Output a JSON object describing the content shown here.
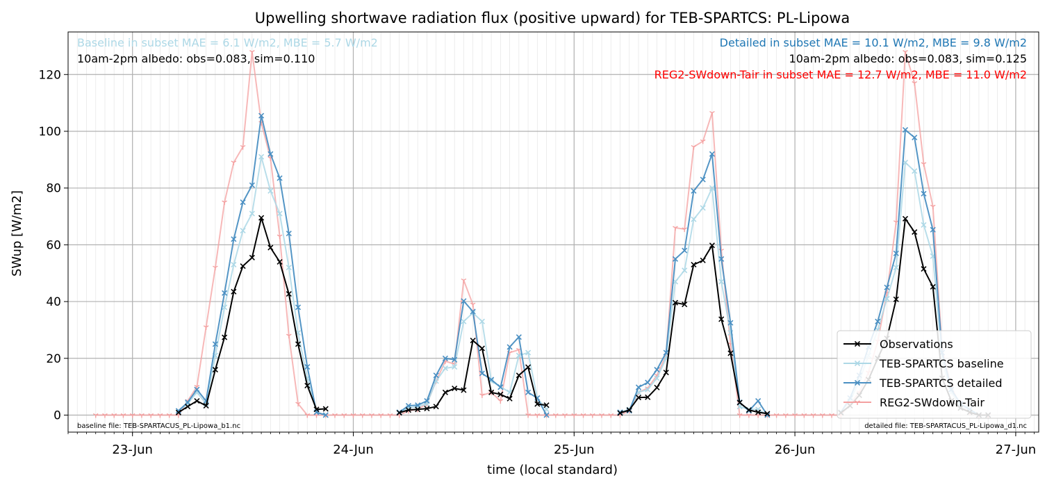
{
  "chart_data": {
    "type": "line",
    "title": "Upwelling shortwave radiation flux (positive upward) for TEB-SPARTCS: PL-Lipowa",
    "xlabel": "time (local standard)",
    "ylabel": "SWup [W/m2]",
    "xlim": [
      "2025-06-22T17:00",
      "2025-06-27T02:30"
    ],
    "ylim": [
      -6,
      135
    ],
    "x_ticks": [
      "23-Jun",
      "24-Jun",
      "25-Jun",
      "26-Jun",
      "27-Jun"
    ],
    "y_ticks": [
      0,
      20,
      40,
      60,
      80,
      100,
      120
    ],
    "grid": true,
    "legend_position": "lower-right",
    "annotations": {
      "baseline_stats": "Baseline in subset MAE = 6.1 W/m2, MBE = 5.7 W/m2",
      "baseline_albedo": "10am-2pm albedo: obs=0.083, sim=0.110",
      "detailed_stats": "Detailed in subset MAE = 10.1 W/m2, MBE = 9.8 W/m2",
      "detailed_albedo": "10am-2pm albedo: obs=0.083, sim=0.125",
      "reg2_stats": "REG2-SWdown-Tair in subset MAE = 12.7 W/m2, MBE = 11.0 W/m2",
      "baseline_file": "baseline file: TEB-SPARTACUS_PL-Lipowa_b1.nc",
      "detailed_file": "detailed file: TEB-SPARTACUS_PL-Lipowa_d1.nc"
    },
    "series": [
      {
        "name": "Observations",
        "color": "#000000",
        "marker": "x",
        "x": [
          "2025-06-23T05:00",
          "2025-06-23T06:00",
          "2025-06-23T07:00",
          "2025-06-23T08:00",
          "2025-06-23T09:00",
          "2025-06-23T10:00",
          "2025-06-23T11:00",
          "2025-06-23T12:00",
          "2025-06-23T13:00",
          "2025-06-23T14:00",
          "2025-06-23T15:00",
          "2025-06-23T16:00",
          "2025-06-23T17:00",
          "2025-06-23T18:00",
          "2025-06-23T19:00",
          "2025-06-23T20:00",
          "2025-06-23T21:00",
          "2025-06-24T05:00",
          "2025-06-24T06:00",
          "2025-06-24T07:00",
          "2025-06-24T08:00",
          "2025-06-24T09:00",
          "2025-06-24T10:00",
          "2025-06-24T11:00",
          "2025-06-24T12:00",
          "2025-06-24T13:00",
          "2025-06-24T14:00",
          "2025-06-24T15:00",
          "2025-06-24T16:00",
          "2025-06-24T17:00",
          "2025-06-24T18:00",
          "2025-06-24T19:00",
          "2025-06-24T20:00",
          "2025-06-24T21:00",
          "2025-06-25T05:00",
          "2025-06-25T06:00",
          "2025-06-25T07:00",
          "2025-06-25T08:00",
          "2025-06-25T09:00",
          "2025-06-25T10:00",
          "2025-06-25T11:00",
          "2025-06-25T12:00",
          "2025-06-25T13:00",
          "2025-06-25T14:00",
          "2025-06-25T15:00",
          "2025-06-25T16:00",
          "2025-06-25T17:00",
          "2025-06-25T18:00",
          "2025-06-25T19:00",
          "2025-06-25T20:00",
          "2025-06-25T21:00",
          "2025-06-26T05:00",
          "2025-06-26T06:00",
          "2025-06-26T07:00",
          "2025-06-26T08:00",
          "2025-06-26T09:00",
          "2025-06-26T10:00",
          "2025-06-26T11:00",
          "2025-06-26T12:00",
          "2025-06-26T13:00",
          "2025-06-26T14:00",
          "2025-06-26T15:00",
          "2025-06-26T16:00",
          "2025-06-26T17:00",
          "2025-06-26T18:00",
          "2025-06-26T19:00",
          "2025-06-26T20:00",
          "2025-06-26T21:00"
        ],
        "y": [
          0.9,
          3,
          5,
          3.3,
          16,
          27.4,
          43.5,
          52.5,
          55.5,
          69.5,
          59,
          54,
          42.7,
          25,
          10.4,
          2,
          2.2,
          0.8,
          1.8,
          2,
          2.3,
          3,
          8,
          9.4,
          8.8,
          26.3,
          23.5,
          8,
          7.3,
          5.8,
          14,
          16.9,
          3.9,
          3.5,
          0.7,
          1.8,
          6.2,
          6.3,
          9.7,
          15,
          39.6,
          39,
          53,
          54.5,
          59.8,
          33.8,
          21.8,
          4.4,
          1.8,
          1,
          0.5,
          0.8,
          3.3,
          7,
          12.5,
          20,
          27,
          40.8,
          69.2,
          64.5,
          51.5,
          45.2,
          13,
          5,
          2.5,
          1,
          0,
          0
        ]
      },
      {
        "name": "TEB-SPARTCS baseline",
        "color": "#add8e6",
        "marker": "x",
        "x": [
          "2025-06-23T05:00",
          "2025-06-23T06:00",
          "2025-06-23T07:00",
          "2025-06-23T08:00",
          "2025-06-23T09:00",
          "2025-06-23T10:00",
          "2025-06-23T11:00",
          "2025-06-23T12:00",
          "2025-06-23T13:00",
          "2025-06-23T14:00",
          "2025-06-23T15:00",
          "2025-06-23T16:00",
          "2025-06-23T17:00",
          "2025-06-23T18:00",
          "2025-06-23T19:00",
          "2025-06-23T20:00",
          "2025-06-23T21:00",
          "2025-06-24T05:00",
          "2025-06-24T06:00",
          "2025-06-24T07:00",
          "2025-06-24T08:00",
          "2025-06-24T09:00",
          "2025-06-24T10:00",
          "2025-06-24T11:00",
          "2025-06-24T12:00",
          "2025-06-24T13:00",
          "2025-06-24T14:00",
          "2025-06-24T15:00",
          "2025-06-24T16:00",
          "2025-06-24T17:00",
          "2025-06-24T18:00",
          "2025-06-24T19:00",
          "2025-06-24T20:00",
          "2025-06-24T21:00",
          "2025-06-25T05:00",
          "2025-06-25T06:00",
          "2025-06-25T07:00",
          "2025-06-25T08:00",
          "2025-06-25T09:00",
          "2025-06-25T10:00",
          "2025-06-25T11:00",
          "2025-06-25T12:00",
          "2025-06-25T13:00",
          "2025-06-25T14:00",
          "2025-06-25T15:00",
          "2025-06-25T16:00",
          "2025-06-25T17:00",
          "2025-06-25T18:00",
          "2025-06-25T19:00",
          "2025-06-25T20:00",
          "2025-06-25T21:00",
          "2025-06-26T05:00",
          "2025-06-26T06:00",
          "2025-06-26T07:00",
          "2025-06-26T08:00",
          "2025-06-26T09:00",
          "2025-06-26T10:00",
          "2025-06-26T11:00",
          "2025-06-26T12:00",
          "2025-06-26T13:00",
          "2025-06-26T14:00",
          "2025-06-26T15:00",
          "2025-06-26T16:00",
          "2025-06-26T17:00",
          "2025-06-26T18:00",
          "2025-06-26T19:00",
          "2025-06-26T20:00",
          "2025-06-26T21:00"
        ],
        "y": [
          1.5,
          4,
          8,
          4,
          21,
          38,
          53,
          65,
          71,
          91,
          79,
          71,
          52,
          29,
          13,
          1,
          0,
          1,
          2.5,
          3,
          4,
          12,
          16.5,
          17,
          33,
          36,
          33,
          12,
          10,
          8,
          21,
          22,
          6,
          2,
          1,
          2,
          8,
          9,
          13,
          20,
          47,
          51,
          69,
          73,
          80,
          47,
          29,
          3,
          2,
          2,
          0,
          1,
          5,
          12,
          21,
          30,
          41,
          52,
          89,
          86,
          67,
          56,
          19,
          8,
          3,
          2,
          0,
          0
        ]
      },
      {
        "name": "TEB-SPARTCS detailed",
        "color": "#4a8fc2",
        "marker": "x",
        "x": [
          "2025-06-23T05:00",
          "2025-06-23T06:00",
          "2025-06-23T07:00",
          "2025-06-23T08:00",
          "2025-06-23T09:00",
          "2025-06-23T10:00",
          "2025-06-23T11:00",
          "2025-06-23T12:00",
          "2025-06-23T13:00",
          "2025-06-23T14:00",
          "2025-06-23T15:00",
          "2025-06-23T16:00",
          "2025-06-23T17:00",
          "2025-06-23T18:00",
          "2025-06-23T19:00",
          "2025-06-23T20:00",
          "2025-06-23T21:00",
          "2025-06-24T05:00",
          "2025-06-24T06:00",
          "2025-06-24T07:00",
          "2025-06-24T08:00",
          "2025-06-24T09:00",
          "2025-06-24T10:00",
          "2025-06-24T11:00",
          "2025-06-24T12:00",
          "2025-06-24T13:00",
          "2025-06-24T14:00",
          "2025-06-24T15:00",
          "2025-06-24T16:00",
          "2025-06-24T17:00",
          "2025-06-24T18:00",
          "2025-06-24T19:00",
          "2025-06-24T20:00",
          "2025-06-24T21:00",
          "2025-06-25T05:00",
          "2025-06-25T06:00",
          "2025-06-25T07:00",
          "2025-06-25T08:00",
          "2025-06-25T09:00",
          "2025-06-25T10:00",
          "2025-06-25T11:00",
          "2025-06-25T12:00",
          "2025-06-25T13:00",
          "2025-06-25T14:00",
          "2025-06-25T15:00",
          "2025-06-25T16:00",
          "2025-06-25T17:00",
          "2025-06-25T18:00",
          "2025-06-25T19:00",
          "2025-06-25T20:00",
          "2025-06-25T21:00",
          "2025-06-26T05:00",
          "2025-06-26T06:00",
          "2025-06-26T07:00",
          "2025-06-26T08:00",
          "2025-06-26T09:00",
          "2025-06-26T10:00",
          "2025-06-26T11:00",
          "2025-06-26T12:00",
          "2025-06-26T13:00",
          "2025-06-26T14:00",
          "2025-06-26T15:00",
          "2025-06-26T16:00",
          "2025-06-26T17:00",
          "2025-06-26T18:00",
          "2025-06-26T19:00",
          "2025-06-26T20:00",
          "2025-06-26T21:00"
        ],
        "y": [
          1.5,
          4.5,
          9,
          5,
          25,
          43,
          62,
          75,
          81,
          105.5,
          92,
          83.5,
          64,
          38,
          17,
          1,
          0,
          1,
          3.3,
          3.5,
          5,
          14,
          20,
          19.5,
          40.2,
          36.5,
          14.7,
          12.5,
          9.8,
          24,
          27.5,
          8,
          6,
          0,
          1,
          1.5,
          9.8,
          11.5,
          16,
          22,
          55,
          58,
          79,
          83,
          92,
          55,
          32.5,
          4.5,
          1.5,
          5,
          0,
          1,
          6,
          14,
          24,
          33,
          45,
          57,
          100.5,
          97.8,
          78,
          65.3,
          22,
          9,
          4,
          2,
          0,
          0
        ]
      },
      {
        "name": "REG2-SWdown-Tair",
        "color": "#f4a0a0",
        "marker": "1",
        "x": [
          "2025-06-22T20:00",
          "2025-06-22T21:00",
          "2025-06-22T22:00",
          "2025-06-22T23:00",
          "2025-06-23T00:00",
          "2025-06-23T01:00",
          "2025-06-23T02:00",
          "2025-06-23T03:00",
          "2025-06-23T04:00",
          "2025-06-23T05:00",
          "2025-06-23T06:00",
          "2025-06-23T07:00",
          "2025-06-23T08:00",
          "2025-06-23T09:00",
          "2025-06-23T10:00",
          "2025-06-23T11:00",
          "2025-06-23T12:00",
          "2025-06-23T13:00",
          "2025-06-23T14:00",
          "2025-06-23T15:00",
          "2025-06-23T16:00",
          "2025-06-23T17:00",
          "2025-06-23T18:00",
          "2025-06-23T19:00",
          "2025-06-23T20:00",
          "2025-06-23T21:00",
          "2025-06-23T22:00",
          "2025-06-23T23:00",
          "2025-06-24T00:00",
          "2025-06-24T01:00",
          "2025-06-24T02:00",
          "2025-06-24T03:00",
          "2025-06-24T04:00",
          "2025-06-24T05:00",
          "2025-06-24T06:00",
          "2025-06-24T07:00",
          "2025-06-24T08:00",
          "2025-06-24T09:00",
          "2025-06-24T10:00",
          "2025-06-24T11:00",
          "2025-06-24T12:00",
          "2025-06-24T13:00",
          "2025-06-24T14:00",
          "2025-06-24T15:00",
          "2025-06-24T16:00",
          "2025-06-24T17:00",
          "2025-06-24T18:00",
          "2025-06-24T19:00",
          "2025-06-24T20:00",
          "2025-06-24T21:00",
          "2025-06-24T22:00",
          "2025-06-24T23:00",
          "2025-06-25T00:00",
          "2025-06-25T01:00",
          "2025-06-25T02:00",
          "2025-06-25T03:00",
          "2025-06-25T04:00",
          "2025-06-25T05:00",
          "2025-06-25T06:00",
          "2025-06-25T07:00",
          "2025-06-25T08:00",
          "2025-06-25T09:00",
          "2025-06-25T10:00",
          "2025-06-25T11:00",
          "2025-06-25T12:00",
          "2025-06-25T13:00",
          "2025-06-25T14:00",
          "2025-06-25T15:00",
          "2025-06-25T16:00",
          "2025-06-25T17:00",
          "2025-06-25T18:00",
          "2025-06-25T19:00",
          "2025-06-25T20:00",
          "2025-06-25T21:00",
          "2025-06-25T22:00",
          "2025-06-25T23:00",
          "2025-06-26T00:00",
          "2025-06-26T01:00",
          "2025-06-26T02:00",
          "2025-06-26T03:00",
          "2025-06-26T04:00",
          "2025-06-26T05:00",
          "2025-06-26T06:00",
          "2025-06-26T07:00",
          "2025-06-26T08:00",
          "2025-06-26T09:00",
          "2025-06-26T10:00",
          "2025-06-26T11:00",
          "2025-06-26T12:00",
          "2025-06-26T13:00",
          "2025-06-26T14:00",
          "2025-06-26T15:00",
          "2025-06-26T16:00",
          "2025-06-26T17:00",
          "2025-06-26T18:00",
          "2025-06-26T19:00",
          "2025-06-26T20:00",
          "2025-06-26T21:00"
        ],
        "y": [
          0,
          0,
          0,
          0,
          0,
          0,
          0,
          0,
          0,
          0,
          5,
          10,
          31,
          52,
          75,
          89,
          94.5,
          128,
          103,
          90.5,
          63,
          28,
          4,
          0,
          0,
          0,
          0,
          0,
          0,
          0,
          0,
          0,
          0,
          0,
          1.5,
          2,
          4,
          12,
          19,
          18,
          47.5,
          39,
          7,
          8,
          5,
          22,
          23,
          0,
          0,
          0,
          0,
          0,
          0,
          0,
          0,
          0,
          0,
          0,
          1.5,
          8,
          9.5,
          14,
          21,
          66,
          65.5,
          94.5,
          96.5,
          106.5,
          58,
          25,
          0,
          0,
          0,
          0,
          0,
          0,
          0,
          0,
          0,
          0,
          0,
          0,
          4,
          8,
          15,
          26,
          43,
          68,
          128,
          117,
          88.5,
          73.5,
          23,
          10,
          3,
          1,
          0,
          0
        ]
      }
    ]
  }
}
